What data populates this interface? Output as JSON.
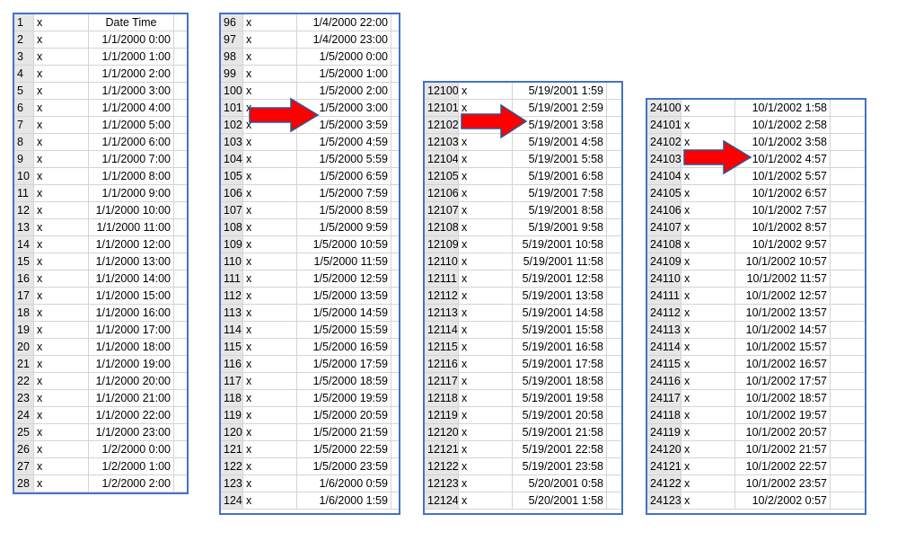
{
  "panels": [
    {
      "header": "Date Time",
      "rows": [
        {
          "n": "2",
          "x": "x",
          "dt": "1/1/2000 0:00"
        },
        {
          "n": "3",
          "x": "x",
          "dt": "1/1/2000 1:00"
        },
        {
          "n": "4",
          "x": "x",
          "dt": "1/1/2000 2:00"
        },
        {
          "n": "5",
          "x": "x",
          "dt": "1/1/2000 3:00"
        },
        {
          "n": "6",
          "x": "x",
          "dt": "1/1/2000 4:00"
        },
        {
          "n": "7",
          "x": "x",
          "dt": "1/1/2000 5:00"
        },
        {
          "n": "8",
          "x": "x",
          "dt": "1/1/2000 6:00"
        },
        {
          "n": "9",
          "x": "x",
          "dt": "1/1/2000 7:00"
        },
        {
          "n": "10",
          "x": "x",
          "dt": "1/1/2000 8:00"
        },
        {
          "n": "11",
          "x": "x",
          "dt": "1/1/2000 9:00"
        },
        {
          "n": "12",
          "x": "x",
          "dt": "1/1/2000 10:00"
        },
        {
          "n": "13",
          "x": "x",
          "dt": "1/1/2000 11:00"
        },
        {
          "n": "14",
          "x": "x",
          "dt": "1/1/2000 12:00"
        },
        {
          "n": "15",
          "x": "x",
          "dt": "1/1/2000 13:00"
        },
        {
          "n": "16",
          "x": "x",
          "dt": "1/1/2000 14:00"
        },
        {
          "n": "17",
          "x": "x",
          "dt": "1/1/2000 15:00"
        },
        {
          "n": "18",
          "x": "x",
          "dt": "1/1/2000 16:00"
        },
        {
          "n": "19",
          "x": "x",
          "dt": "1/1/2000 17:00"
        },
        {
          "n": "20",
          "x": "x",
          "dt": "1/1/2000 18:00"
        },
        {
          "n": "21",
          "x": "x",
          "dt": "1/1/2000 19:00"
        },
        {
          "n": "22",
          "x": "x",
          "dt": "1/1/2000 20:00"
        },
        {
          "n": "23",
          "x": "x",
          "dt": "1/1/2000 21:00"
        },
        {
          "n": "24",
          "x": "x",
          "dt": "1/1/2000 22:00"
        },
        {
          "n": "25",
          "x": "x",
          "dt": "1/1/2000 23:00"
        },
        {
          "n": "26",
          "x": "x",
          "dt": "1/2/2000 0:00"
        },
        {
          "n": "27",
          "x": "x",
          "dt": "1/2/2000 1:00"
        },
        {
          "n": "28",
          "x": "x",
          "dt": "1/2/2000 2:00"
        }
      ],
      "header_row": {
        "n": "1",
        "x": "x"
      }
    },
    {
      "rows": [
        {
          "n": "96",
          "x": "x",
          "dt": "1/4/2000 22:00"
        },
        {
          "n": "97",
          "x": "x",
          "dt": "1/4/2000 23:00"
        },
        {
          "n": "98",
          "x": "x",
          "dt": "1/5/2000 0:00"
        },
        {
          "n": "99",
          "x": "x",
          "dt": "1/5/2000 1:00"
        },
        {
          "n": "100",
          "x": "x",
          "dt": "1/5/2000 2:00"
        },
        {
          "n": "101",
          "x": "x",
          "dt": "1/5/2000 3:00"
        },
        {
          "n": "102",
          "x": "x",
          "dt": "1/5/2000 3:59"
        },
        {
          "n": "103",
          "x": "x",
          "dt": "1/5/2000 4:59"
        },
        {
          "n": "104",
          "x": "x",
          "dt": "1/5/2000 5:59"
        },
        {
          "n": "105",
          "x": "x",
          "dt": "1/5/2000 6:59"
        },
        {
          "n": "106",
          "x": "x",
          "dt": "1/5/2000 7:59"
        },
        {
          "n": "107",
          "x": "x",
          "dt": "1/5/2000 8:59"
        },
        {
          "n": "108",
          "x": "x",
          "dt": "1/5/2000 9:59"
        },
        {
          "n": "109",
          "x": "x",
          "dt": "1/5/2000 10:59"
        },
        {
          "n": "110",
          "x": "x",
          "dt": "1/5/2000 11:59"
        },
        {
          "n": "111",
          "x": "x",
          "dt": "1/5/2000 12:59"
        },
        {
          "n": "112",
          "x": "x",
          "dt": "1/5/2000 13:59"
        },
        {
          "n": "113",
          "x": "x",
          "dt": "1/5/2000 14:59"
        },
        {
          "n": "114",
          "x": "x",
          "dt": "1/5/2000 15:59"
        },
        {
          "n": "115",
          "x": "x",
          "dt": "1/5/2000 16:59"
        },
        {
          "n": "116",
          "x": "x",
          "dt": "1/5/2000 17:59"
        },
        {
          "n": "117",
          "x": "x",
          "dt": "1/5/2000 18:59"
        },
        {
          "n": "118",
          "x": "x",
          "dt": "1/5/2000 19:59"
        },
        {
          "n": "119",
          "x": "x",
          "dt": "1/5/2000 20:59"
        },
        {
          "n": "120",
          "x": "x",
          "dt": "1/5/2000 21:59"
        },
        {
          "n": "121",
          "x": "x",
          "dt": "1/5/2000 22:59"
        },
        {
          "n": "122",
          "x": "x",
          "dt": "1/5/2000 23:59"
        },
        {
          "n": "123",
          "x": "x",
          "dt": "1/6/2000 0:59"
        },
        {
          "n": "124",
          "x": "x",
          "dt": "1/6/2000 1:59"
        }
      ]
    },
    {
      "rows": [
        {
          "n": "12100",
          "x": "x",
          "dt": "5/19/2001 1:59"
        },
        {
          "n": "12101",
          "x": "x",
          "dt": "5/19/2001 2:59"
        },
        {
          "n": "12102",
          "x": "x",
          "dt": "5/19/2001 3:58"
        },
        {
          "n": "12103",
          "x": "x",
          "dt": "5/19/2001 4:58"
        },
        {
          "n": "12104",
          "x": "x",
          "dt": "5/19/2001 5:58"
        },
        {
          "n": "12105",
          "x": "x",
          "dt": "5/19/2001 6:58"
        },
        {
          "n": "12106",
          "x": "x",
          "dt": "5/19/2001 7:58"
        },
        {
          "n": "12107",
          "x": "x",
          "dt": "5/19/2001 8:58"
        },
        {
          "n": "12108",
          "x": "x",
          "dt": "5/19/2001 9:58"
        },
        {
          "n": "12109",
          "x": "x",
          "dt": "5/19/2001 10:58"
        },
        {
          "n": "12110",
          "x": "x",
          "dt": "5/19/2001 11:58"
        },
        {
          "n": "12111",
          "x": "x",
          "dt": "5/19/2001 12:58"
        },
        {
          "n": "12112",
          "x": "x",
          "dt": "5/19/2001 13:58"
        },
        {
          "n": "12113",
          "x": "x",
          "dt": "5/19/2001 14:58"
        },
        {
          "n": "12114",
          "x": "x",
          "dt": "5/19/2001 15:58"
        },
        {
          "n": "12115",
          "x": "x",
          "dt": "5/19/2001 16:58"
        },
        {
          "n": "12116",
          "x": "x",
          "dt": "5/19/2001 17:58"
        },
        {
          "n": "12117",
          "x": "x",
          "dt": "5/19/2001 18:58"
        },
        {
          "n": "12118",
          "x": "x",
          "dt": "5/19/2001 19:58"
        },
        {
          "n": "12119",
          "x": "x",
          "dt": "5/19/2001 20:58"
        },
        {
          "n": "12120",
          "x": "x",
          "dt": "5/19/2001 21:58"
        },
        {
          "n": "12121",
          "x": "x",
          "dt": "5/19/2001 22:58"
        },
        {
          "n": "12122",
          "x": "x",
          "dt": "5/19/2001 23:58"
        },
        {
          "n": "12123",
          "x": "x",
          "dt": "5/20/2001 0:58"
        },
        {
          "n": "12124",
          "x": "x",
          "dt": "5/20/2001 1:58"
        }
      ]
    },
    {
      "rows": [
        {
          "n": "24100",
          "x": "x",
          "dt": "10/1/2002 1:58"
        },
        {
          "n": "24101",
          "x": "x",
          "dt": "10/1/2002 2:58"
        },
        {
          "n": "24102",
          "x": "x",
          "dt": "10/1/2002 3:58"
        },
        {
          "n": "24103",
          "x": "x",
          "dt": "10/1/2002 4:57"
        },
        {
          "n": "24104",
          "x": "x",
          "dt": "10/1/2002 5:57"
        },
        {
          "n": "24105",
          "x": "x",
          "dt": "10/1/2002 6:57"
        },
        {
          "n": "24106",
          "x": "x",
          "dt": "10/1/2002 7:57"
        },
        {
          "n": "24107",
          "x": "x",
          "dt": "10/1/2002 8:57"
        },
        {
          "n": "24108",
          "x": "x",
          "dt": "10/1/2002 9:57"
        },
        {
          "n": "24109",
          "x": "x",
          "dt": "10/1/2002 10:57"
        },
        {
          "n": "24110",
          "x": "x",
          "dt": "10/1/2002 11:57"
        },
        {
          "n": "24111",
          "x": "x",
          "dt": "10/1/2002 12:57"
        },
        {
          "n": "24112",
          "x": "x",
          "dt": "10/1/2002 13:57"
        },
        {
          "n": "24113",
          "x": "x",
          "dt": "10/1/2002 14:57"
        },
        {
          "n": "24114",
          "x": "x",
          "dt": "10/1/2002 15:57"
        },
        {
          "n": "24115",
          "x": "x",
          "dt": "10/1/2002 16:57"
        },
        {
          "n": "24116",
          "x": "x",
          "dt": "10/1/2002 17:57"
        },
        {
          "n": "24117",
          "x": "x",
          "dt": "10/1/2002 18:57"
        },
        {
          "n": "24118",
          "x": "x",
          "dt": "10/1/2002 19:57"
        },
        {
          "n": "24119",
          "x": "x",
          "dt": "10/1/2002 20:57"
        },
        {
          "n": "24120",
          "x": "x",
          "dt": "10/1/2002 21:57"
        },
        {
          "n": "24121",
          "x": "x",
          "dt": "10/1/2002 22:57"
        },
        {
          "n": "24122",
          "x": "x",
          "dt": "10/1/2002 23:57"
        },
        {
          "n": "24123",
          "x": "x",
          "dt": "10/2/2002 0:57"
        }
      ]
    }
  ],
  "colors": {
    "panel_border": "#4472c4",
    "grid_line": "#d4d4d4",
    "row_header_bg": "#e6e6e6",
    "arrow_fill": "#ff0000",
    "arrow_stroke": "#2f5597"
  },
  "icons": [
    "right-arrow-icon"
  ]
}
